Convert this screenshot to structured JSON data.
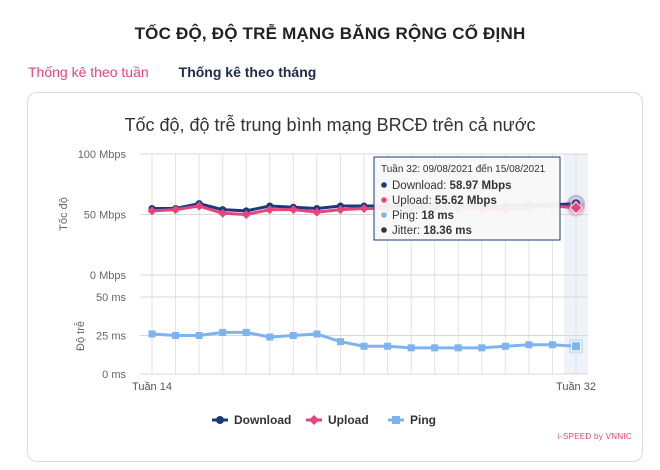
{
  "page": {
    "title": "TỐC ĐỘ, ĐỘ TRỄ MẠNG BĂNG RỘNG CỐ ĐỊNH"
  },
  "tabs": [
    {
      "label": "Thống kê theo tuần",
      "active": true
    },
    {
      "label": "Thống kê theo tháng",
      "active": false
    }
  ],
  "brand": "i-SPEED by VNNIC",
  "colors": {
    "download": "#1a3a7c",
    "upload": "#e8437f",
    "ping": "#7db4ef",
    "jitter": "#333333",
    "accent_tab": "#e2457a"
  },
  "chart_data": {
    "type": "line",
    "title": "Tốc độ, độ trễ trung bình mạng BRCĐ trên cả nước",
    "x": [
      "Tuần 14",
      "Tuần 15",
      "Tuần 16",
      "Tuần 17",
      "Tuần 18",
      "Tuần 19",
      "Tuần 20",
      "Tuần 21",
      "Tuần 22",
      "Tuần 23",
      "Tuần 24",
      "Tuần 25",
      "Tuần 26",
      "Tuần 27",
      "Tuần 28",
      "Tuần 29",
      "Tuần 30",
      "Tuần 31",
      "Tuần 32"
    ],
    "x_tick_labels": [
      "Tuần 14",
      "Tuần 32"
    ],
    "panels": [
      {
        "ylabel": "Tốc độ",
        "yticks": [
          "0 Mbps",
          "50 Mbps",
          "100 Mbps"
        ],
        "ylim": [
          0,
          100
        ],
        "series": [
          {
            "name": "Download",
            "values": [
              55,
              55,
              59,
              54,
              53,
              57,
              56,
              55,
              57,
              57,
              57,
              57,
              57,
              57,
              57,
              57,
              58,
              58,
              58.97
            ]
          },
          {
            "name": "Upload",
            "values": [
              53,
              54,
              57,
              51,
              50,
              54,
              54,
              52,
              54,
              55,
              55,
              55,
              55,
              55,
              55,
              54,
              55,
              57,
              55.62
            ]
          }
        ]
      },
      {
        "ylabel": "Độ trễ",
        "yticks": [
          "0 ms",
          "25 ms",
          "50 ms"
        ],
        "ylim": [
          0,
          50
        ],
        "series": [
          {
            "name": "Ping",
            "values": [
              26,
              25,
              25,
              27,
              27,
              24,
              25,
              26,
              21,
              18,
              18,
              17,
              17,
              17,
              17,
              18,
              19,
              19,
              18
            ]
          }
        ]
      }
    ],
    "legend": [
      "Download",
      "Upload",
      "Ping"
    ],
    "legend_position": "bottom",
    "grid": true,
    "tooltip": {
      "header": "Tuần 32: 09/08/2021 đến 15/08/2021",
      "rows": [
        {
          "label": "Download: ",
          "value": "58.97 Mbps"
        },
        {
          "label": "Upload: ",
          "value": "55.62 Mbps"
        },
        {
          "label": "Ping: ",
          "value": "18 ms"
        },
        {
          "label": "Jitter: ",
          "value": "18.36 ms"
        }
      ]
    }
  }
}
